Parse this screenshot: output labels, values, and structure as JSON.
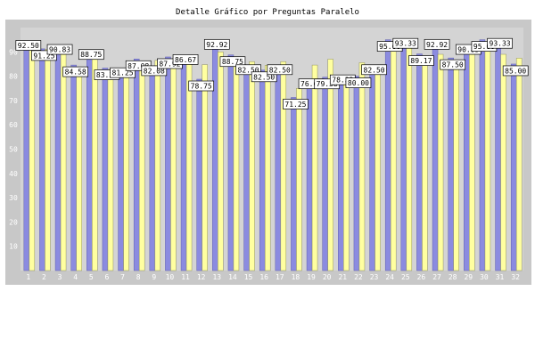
{
  "chart_data": {
    "type": "bar",
    "title": "Detalle Gráfico por Preguntas Paralelo",
    "xlabel": "",
    "ylabel": "",
    "ylim": [
      0,
      100
    ],
    "yticks": [
      10,
      20,
      30,
      40,
      50,
      60,
      70,
      80,
      90
    ],
    "grid": false,
    "categories": [
      "1",
      "2",
      "3",
      "4",
      "5",
      "6",
      "7",
      "8",
      "9",
      "10",
      "11",
      "12",
      "13",
      "14",
      "15",
      "16",
      "17",
      "18",
      "19",
      "20",
      "21",
      "22",
      "23",
      "24",
      "25",
      "26",
      "27",
      "28",
      "29",
      "30",
      "31",
      "32"
    ],
    "series": [
      {
        "color": "#8b8be0",
        "values": [
          92.5,
          91.25,
          90.83,
          84.58,
          88.75,
          83.33,
          81.25,
          87.08,
          82.08,
          87.92,
          86.67,
          78.75,
          92.92,
          88.75,
          82.5,
          82.5,
          82.5,
          71.25,
          76.67,
          79.58,
          78.33,
          80.0,
          82.5,
          95.0,
          93.33,
          89.17,
          92.92,
          87.5,
          90.83,
          95.0,
          93.33,
          85.0
        ]
      },
      {
        "color": "#ffffa0",
        "values": [
          92.0,
          91.0,
          89.0,
          83.5,
          88.0,
          81.0,
          83.0,
          86.0,
          86.5,
          87.0,
          85.0,
          84.75,
          90.0,
          88.0,
          86.0,
          84.5,
          86.0,
          75.0,
          84.58,
          87.0,
          80.0,
          85.55,
          81.75,
          94.0,
          92.0,
          88.0,
          89.0,
          86.0,
          89.0,
          92.0,
          89.0,
          87.42
        ]
      }
    ],
    "boxed_labels": [
      "92.50",
      "91.25",
      "90.83",
      "84.58",
      "88.75",
      "83.33",
      "81.25",
      "87.08",
      "82.08",
      "87.92",
      "86.67",
      "78.75",
      "92.92",
      "88.75",
      "82.50",
      "82.50",
      "82.50",
      "71.25",
      "76.67",
      "79.58",
      "78.33",
      "80.00",
      "82.50",
      "95.00",
      "93.33",
      "89.17",
      "92.92",
      "87.50",
      "90.83",
      "95.00",
      "93.33",
      "85.00"
    ]
  }
}
